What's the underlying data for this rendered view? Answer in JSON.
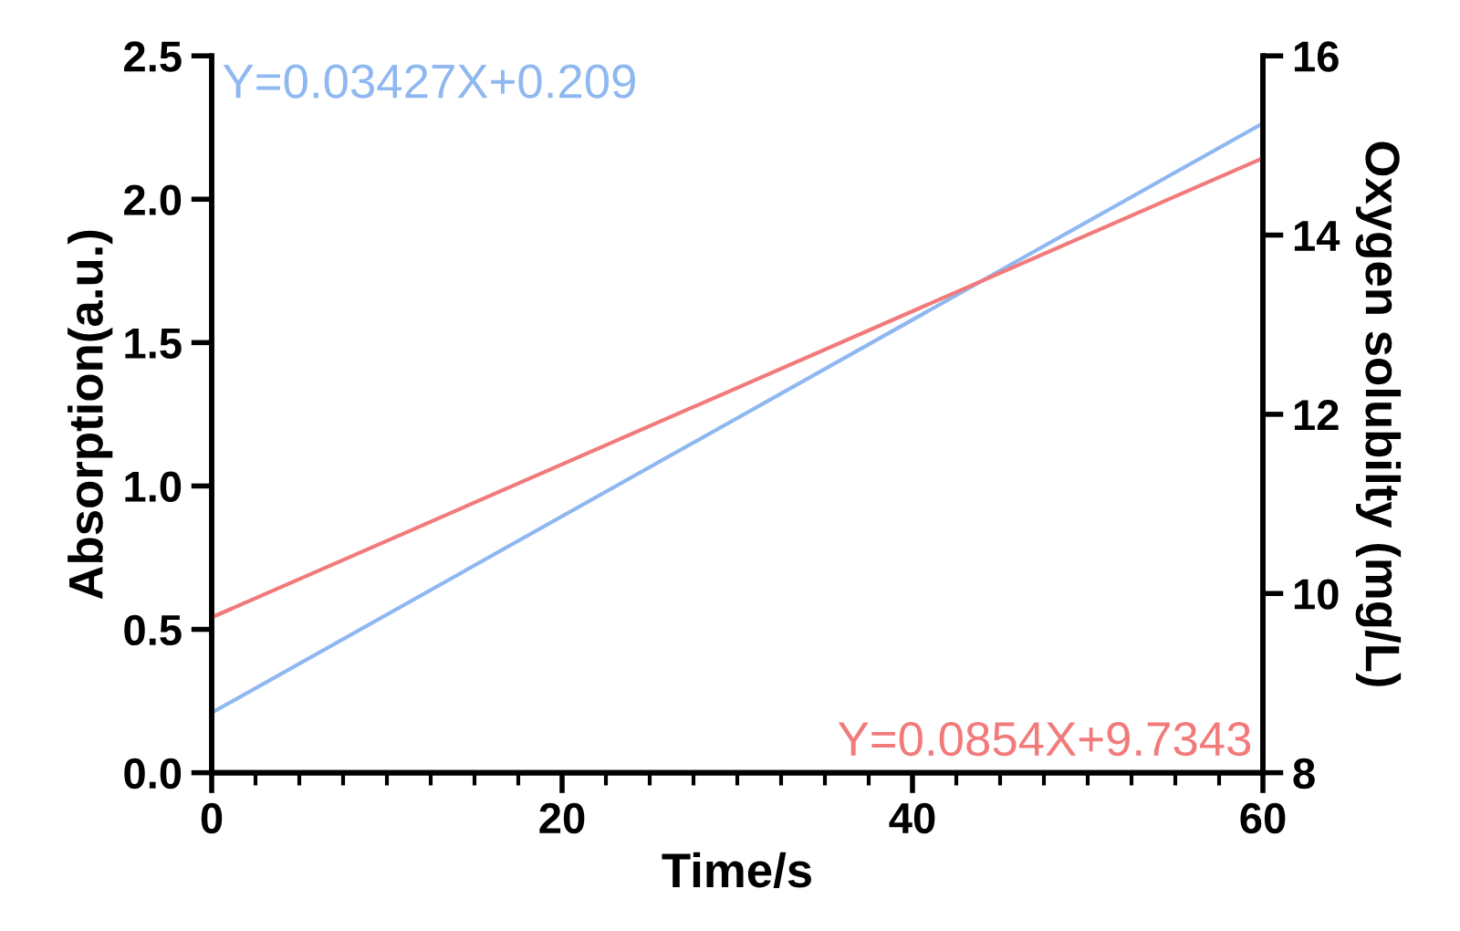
{
  "chart_data": {
    "type": "line",
    "xlabel": "Time/s",
    "ylabel": "Absorption(a.u.)",
    "y2label": "Oxygen solubilty (mg/L)",
    "x": [
      0,
      60
    ],
    "series": [
      {
        "name": "Y=0.03427X+0.209",
        "color": "#8fb8f0",
        "values": [
          0.209,
          2.265
        ]
      },
      {
        "name": "Y=0.0854X+9.7343",
        "color": "#f27a7a",
        "values": [
          9.734,
          14.858
        ],
        "axis": "y2"
      }
    ],
    "xlim": [
      0,
      60
    ],
    "xticks": [
      0,
      {
        "value": 2.5,
        "label": null
      },
      {
        "value": 5,
        "label": null
      },
      {
        "value": 7.5,
        "label": null
      },
      {
        "value": 10,
        "label": null
      },
      {
        "value": 12.5,
        "label": null
      },
      {
        "value": 15,
        "label": null
      },
      {
        "value": 17.5,
        "label": null
      },
      20,
      {
        "value": 22.5,
        "label": null
      },
      {
        "value": 25,
        "label": null
      },
      {
        "value": 27.5,
        "label": null
      },
      {
        "value": 30,
        "label": null
      },
      {
        "value": 32.5,
        "label": null
      },
      {
        "value": 35,
        "label": null
      },
      {
        "value": 37.5,
        "label": null
      },
      40,
      {
        "value": 42.5,
        "label": null
      },
      {
        "value": 45,
        "label": null
      },
      {
        "value": 47.5,
        "label": null
      },
      {
        "value": 50,
        "label": null
      },
      {
        "value": 52.5,
        "label": null
      },
      {
        "value": 55,
        "label": null
      },
      {
        "value": 57.5,
        "label": null
      },
      60
    ],
    "ylim": [
      0,
      2.5
    ],
    "yticks": [
      {
        "value": 0,
        "label": "0.0"
      },
      {
        "value": 0.5,
        "label": "0.5"
      },
      {
        "value": 1,
        "label": "1.0"
      },
      {
        "value": 1.5,
        "label": "1.5"
      },
      {
        "value": 2,
        "label": "2.0"
      },
      {
        "value": 2.5,
        "label": "2.5"
      }
    ],
    "y2lim": [
      8,
      16
    ],
    "y2ticks": [
      8,
      10,
      12,
      14,
      16
    ],
    "grid": false,
    "legend": false,
    "marker": "none",
    "line_style": "solid"
  }
}
